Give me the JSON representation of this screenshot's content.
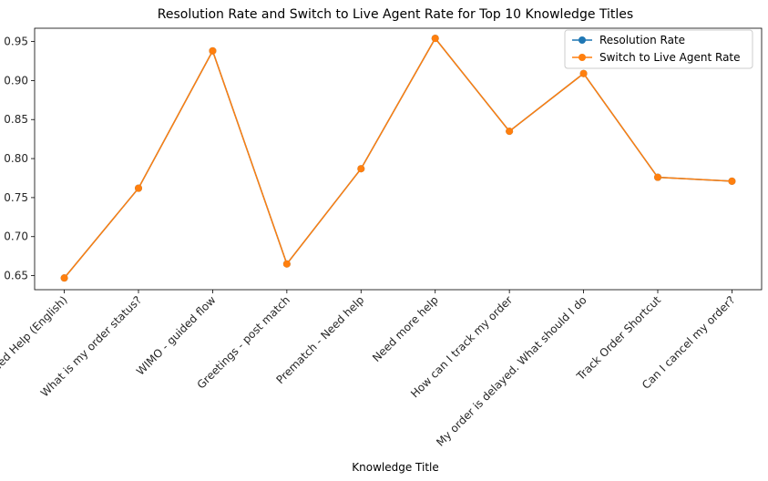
{
  "chart_data": {
    "type": "line",
    "title": "Resolution Rate and Switch to Live Agent Rate for Top 10 Knowledge Titles",
    "xlabel": "Knowledge Title",
    "ylabel": "",
    "categories": [
      "Need Help (English)",
      "What is my order status?",
      "WIMO - guided flow",
      "Greetings - post match",
      "Prematch - Need help",
      "Need more help",
      "How can I track my order",
      "My order is delayed. What should I do",
      "Track Order Shortcut",
      "Can I cancel my order?"
    ],
    "series": [
      {
        "name": "Resolution Rate",
        "color": "#1f77b4",
        "values": [
          0.647,
          0.762,
          0.938,
          0.665,
          0.787,
          0.954,
          0.835,
          0.909,
          0.776,
          0.771
        ]
      },
      {
        "name": "Switch to Live Agent Rate",
        "color": "#ff7f0e",
        "values": [
          0.647,
          0.762,
          0.938,
          0.665,
          0.787,
          0.954,
          0.835,
          0.909,
          0.776,
          0.771
        ]
      }
    ],
    "ylim": [
      0.632,
      0.967
    ],
    "yticks": [
      "0.65",
      "0.70",
      "0.75",
      "0.80",
      "0.85",
      "0.90",
      "0.95"
    ],
    "grid": false,
    "legend_position": "top-right"
  }
}
